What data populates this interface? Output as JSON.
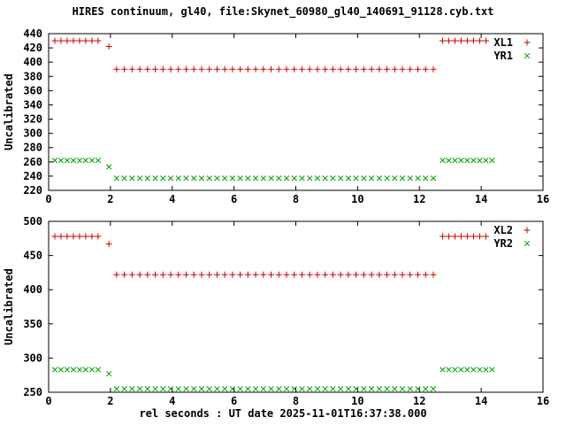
{
  "title": "HIRES continuum, gl40, file:Skynet_60980_gl40_140691_91128.cyb.txt",
  "xlabel": "rel seconds : UT date 2025-11-01T16:37:38.000",
  "colors": {
    "red": "#cc0000",
    "green": "#00a000",
    "axis": "#000000",
    "background": "#ffffff"
  },
  "chart_data": [
    {
      "type": "scatter",
      "panel": "top",
      "ylabel": "Uncalibrated",
      "xlim": [
        0,
        16
      ],
      "xtick_step": 2,
      "ylim": [
        220,
        440
      ],
      "ytick_step": 20,
      "legend_position": "top-right",
      "grid": false,
      "series": [
        {
          "name": "XL1",
          "marker": "plus",
          "color": "#cc0000",
          "x": [
            0.2,
            0.4,
            0.6,
            0.8,
            1.0,
            1.2,
            1.4,
            1.6,
            1.95,
            2.2,
            2.45,
            2.7,
            2.95,
            3.2,
            3.45,
            3.7,
            3.95,
            4.2,
            4.45,
            4.7,
            4.95,
            5.2,
            5.45,
            5.7,
            5.95,
            6.2,
            6.45,
            6.7,
            6.95,
            7.2,
            7.45,
            7.7,
            7.95,
            8.2,
            8.45,
            8.7,
            8.95,
            9.2,
            9.45,
            9.7,
            9.95,
            10.2,
            10.45,
            10.7,
            10.95,
            11.2,
            11.45,
            11.7,
            11.95,
            12.2,
            12.45,
            12.75,
            12.95,
            13.15,
            13.35,
            13.55,
            13.75,
            13.95,
            14.15
          ],
          "y": [
            430,
            430,
            430,
            430,
            430,
            430,
            430,
            430,
            422,
            390,
            390,
            390,
            390,
            390,
            390,
            390,
            390,
            390,
            390,
            390,
            390,
            390,
            390,
            390,
            390,
            390,
            390,
            390,
            390,
            390,
            390,
            390,
            390,
            390,
            390,
            390,
            390,
            390,
            390,
            390,
            390,
            390,
            390,
            390,
            390,
            390,
            390,
            390,
            390,
            390,
            390,
            430,
            430,
            430,
            430,
            430,
            430,
            430,
            430
          ]
        },
        {
          "name": "YR1",
          "marker": "cross",
          "color": "#00a000",
          "x": [
            0.2,
            0.4,
            0.6,
            0.8,
            1.0,
            1.2,
            1.4,
            1.6,
            1.95,
            2.2,
            2.45,
            2.7,
            2.95,
            3.2,
            3.45,
            3.7,
            3.95,
            4.2,
            4.45,
            4.7,
            4.95,
            5.2,
            5.45,
            5.7,
            5.95,
            6.2,
            6.45,
            6.7,
            6.95,
            7.2,
            7.45,
            7.7,
            7.95,
            8.2,
            8.45,
            8.7,
            8.95,
            9.2,
            9.45,
            9.7,
            9.95,
            10.2,
            10.45,
            10.7,
            10.95,
            11.2,
            11.45,
            11.7,
            11.95,
            12.2,
            12.45,
            12.75,
            12.95,
            13.15,
            13.35,
            13.55,
            13.75,
            13.95,
            14.15,
            14.35
          ],
          "y": [
            262,
            262,
            262,
            262,
            262,
            262,
            262,
            262,
            253,
            237,
            237,
            237,
            237,
            237,
            237,
            237,
            237,
            237,
            237,
            237,
            237,
            237,
            237,
            237,
            237,
            237,
            237,
            237,
            237,
            237,
            237,
            237,
            237,
            237,
            237,
            237,
            237,
            237,
            237,
            237,
            237,
            237,
            237,
            237,
            237,
            237,
            237,
            237,
            237,
            237,
            237,
            262,
            262,
            262,
            262,
            262,
            262,
            262,
            262,
            262
          ]
        }
      ]
    },
    {
      "type": "scatter",
      "panel": "bottom",
      "ylabel": "Uncalibrated",
      "xlim": [
        0,
        16
      ],
      "xtick_step": 2,
      "ylim": [
        250,
        500
      ],
      "ytick_step": 50,
      "legend_position": "top-right",
      "grid": false,
      "series": [
        {
          "name": "XL2",
          "marker": "plus",
          "color": "#cc0000",
          "x": [
            0.2,
            0.4,
            0.6,
            0.8,
            1.0,
            1.2,
            1.4,
            1.6,
            1.95,
            2.2,
            2.45,
            2.7,
            2.95,
            3.2,
            3.45,
            3.7,
            3.95,
            4.2,
            4.45,
            4.7,
            4.95,
            5.2,
            5.45,
            5.7,
            5.95,
            6.2,
            6.45,
            6.7,
            6.95,
            7.2,
            7.45,
            7.7,
            7.95,
            8.2,
            8.45,
            8.7,
            8.95,
            9.2,
            9.45,
            9.7,
            9.95,
            10.2,
            10.45,
            10.7,
            10.95,
            11.2,
            11.45,
            11.7,
            11.95,
            12.2,
            12.45,
            12.75,
            12.95,
            13.15,
            13.35,
            13.55,
            13.75,
            13.95,
            14.15
          ],
          "y": [
            478,
            478,
            478,
            478,
            478,
            478,
            478,
            478,
            467,
            422,
            422,
            422,
            422,
            422,
            422,
            422,
            422,
            422,
            422,
            422,
            422,
            422,
            422,
            422,
            422,
            422,
            422,
            422,
            422,
            422,
            422,
            422,
            422,
            422,
            422,
            422,
            422,
            422,
            422,
            422,
            422,
            422,
            422,
            422,
            422,
            422,
            422,
            422,
            422,
            422,
            422,
            478,
            478,
            478,
            478,
            478,
            478,
            478,
            478
          ]
        },
        {
          "name": "YR2",
          "marker": "cross",
          "color": "#00a000",
          "x": [
            0.2,
            0.4,
            0.6,
            0.8,
            1.0,
            1.2,
            1.4,
            1.6,
            1.95,
            2.2,
            2.45,
            2.7,
            2.95,
            3.2,
            3.45,
            3.7,
            3.95,
            4.2,
            4.45,
            4.7,
            4.95,
            5.2,
            5.45,
            5.7,
            5.95,
            6.2,
            6.45,
            6.7,
            6.95,
            7.2,
            7.45,
            7.7,
            7.95,
            8.2,
            8.45,
            8.7,
            8.95,
            9.2,
            9.45,
            9.7,
            9.95,
            10.2,
            10.45,
            10.7,
            10.95,
            11.2,
            11.45,
            11.7,
            11.95,
            12.2,
            12.45,
            12.75,
            12.95,
            13.15,
            13.35,
            13.55,
            13.75,
            13.95,
            14.15,
            14.35
          ],
          "y": [
            283,
            283,
            283,
            283,
            283,
            283,
            283,
            283,
            277,
            255,
            255,
            255,
            255,
            255,
            255,
            255,
            255,
            255,
            255,
            255,
            255,
            255,
            255,
            255,
            255,
            255,
            255,
            255,
            255,
            255,
            255,
            255,
            255,
            255,
            255,
            255,
            255,
            255,
            255,
            255,
            255,
            255,
            255,
            255,
            255,
            255,
            255,
            255,
            255,
            255,
            255,
            283,
            283,
            283,
            283,
            283,
            283,
            283,
            283,
            283
          ]
        }
      ]
    }
  ]
}
